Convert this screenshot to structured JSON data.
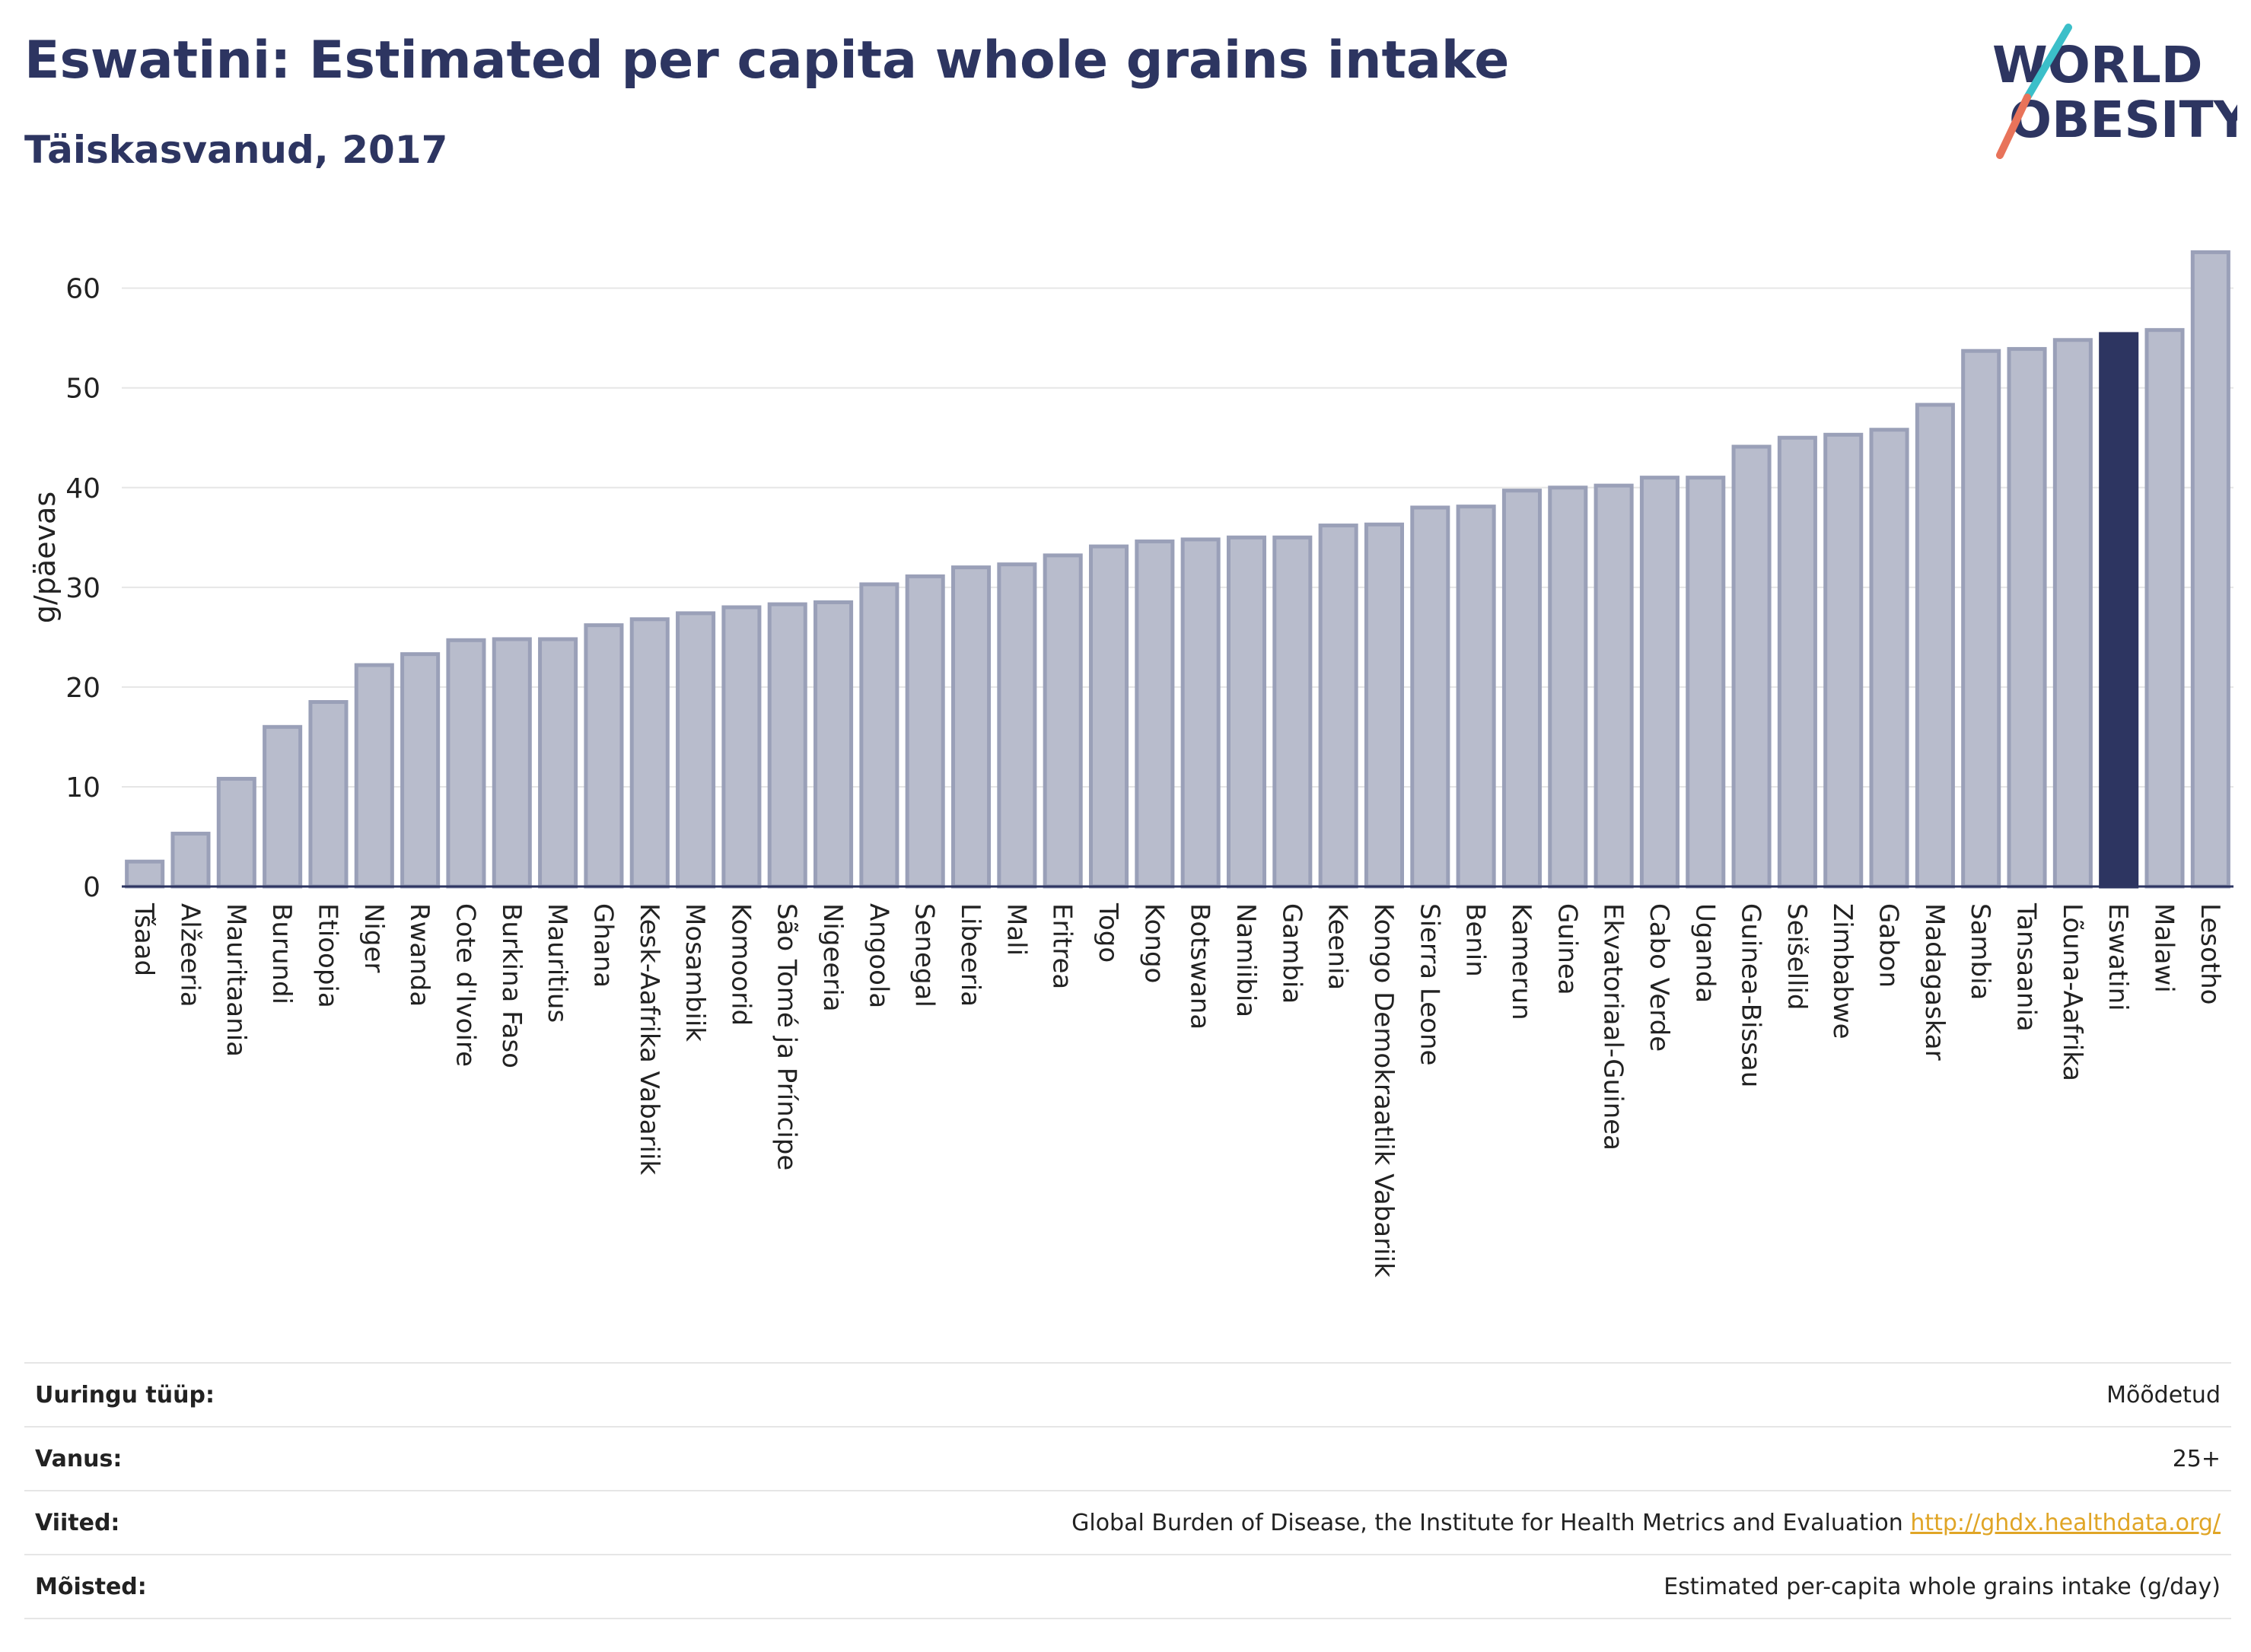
{
  "title": "Eswatini: Estimated per capita whole grains intake",
  "subtitle": "Täiskasvanud, 2017",
  "logo": {
    "line1": "WORLD",
    "line2": "OBESITY"
  },
  "colors": {
    "bar": "#b8bccc",
    "bar_border": "#9aa0b8",
    "highlight": "#2d3561",
    "grid": "#e6e6e6",
    "axis": "#2d3561"
  },
  "chart_data": {
    "type": "bar",
    "ylabel": "g/päevas",
    "xlabel": "",
    "ylim": [
      0,
      66
    ],
    "yticks": [
      0,
      10,
      20,
      30,
      40,
      50,
      60
    ],
    "grid": true,
    "highlight": "Eswatini",
    "categories": [
      "Tšaad",
      "Alžeeria",
      "Mauritaania",
      "Burundi",
      "Etioopia",
      "Niger",
      "Rwanda",
      "Cote d'Ivoire",
      "Burkina Faso",
      "Mauritius",
      "Ghana",
      "Kesk-Aafrika Vabariik",
      "Mosambiik",
      "Komoorid",
      "São Tomé ja Príncipe",
      "Nigeeria",
      "Angoola",
      "Senegal",
      "Libeeria",
      "Mali",
      "Eritrea",
      "Togo",
      "Kongo",
      "Botswana",
      "Namiibia",
      "Gambia",
      "Keenia",
      "Kongo Demokraatlik Vabariik",
      "Sierra Leone",
      "Benin",
      "Kamerun",
      "Guinea",
      "Ekvatoriaal-Guinea",
      "Cabo Verde",
      "Uganda",
      "Guinea-Bissau",
      "Seišellid",
      "Zimbabwe",
      "Gabon",
      "Madagaskar",
      "Sambia",
      "Tansaania",
      "Lõuna-Aafrika",
      "Eswatini",
      "Malawi",
      "Lesotho"
    ],
    "values": [
      2.5,
      5.3,
      10.8,
      16.0,
      18.5,
      22.2,
      23.3,
      24.7,
      24.8,
      24.8,
      26.2,
      26.8,
      27.4,
      28.0,
      28.3,
      28.5,
      30.3,
      31.1,
      32.0,
      32.3,
      33.2,
      34.1,
      34.6,
      34.8,
      35.0,
      35.0,
      36.2,
      36.3,
      38.0,
      38.1,
      39.7,
      40.0,
      40.2,
      41.0,
      41.0,
      44.1,
      45.0,
      45.3,
      45.8,
      48.3,
      53.7,
      53.9,
      54.8,
      55.4,
      55.8,
      63.6
    ]
  },
  "info": [
    {
      "label": "Uuringu tüüp:",
      "value": "Mõõdetud"
    },
    {
      "label": "Vanus:",
      "value": "25+"
    },
    {
      "label": "Viited:",
      "value": "Global Burden of Disease, the Institute for Health Metrics and Evaluation",
      "link": "http://ghdx.healthdata.org/"
    },
    {
      "label": "Mõisted:",
      "value": "Estimated per-capita whole grains intake (g/day)"
    }
  ]
}
